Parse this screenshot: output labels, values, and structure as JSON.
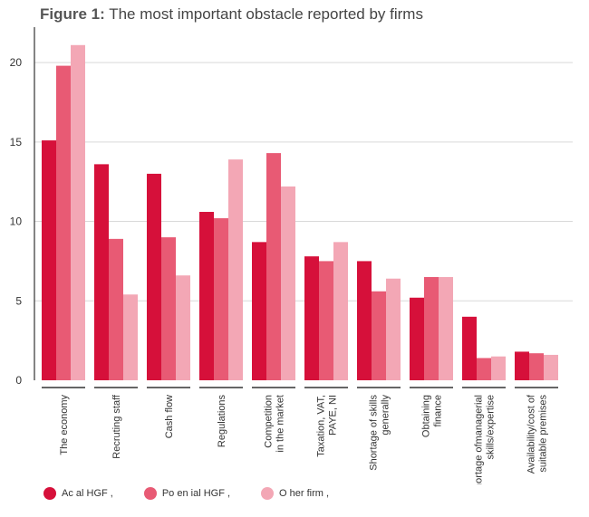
{
  "title": {
    "prefix": "Figure 1:",
    "text": "The most important obstacle reported by firms"
  },
  "colors": {
    "series1": "#d6103a",
    "series2": "#e85a74",
    "series3": "#f3a7b5",
    "grid": "#d9d9d9",
    "axis": "#333333"
  },
  "chart_data": {
    "type": "bar",
    "categories": [
      [
        "The economy"
      ],
      [
        "Recruting staff"
      ],
      [
        "Cash flow"
      ],
      [
        "Regulations"
      ],
      [
        "Competition",
        "in the market"
      ],
      [
        "Taxation, VAT,",
        "PAYE, NI"
      ],
      [
        "Shortage of skills",
        "generally"
      ],
      [
        "Obtaining",
        "finance"
      ],
      [
        "Shortage ofmanagerial",
        "skills/expertise"
      ],
      [
        "Availability/cost of",
        "suitable premises"
      ]
    ],
    "series": [
      {
        "name": "Ac al HGF ,",
        "values": [
          15.1,
          13.6,
          13.0,
          10.6,
          8.7,
          7.8,
          7.5,
          5.2,
          4.0,
          1.8
        ]
      },
      {
        "name": "Po en ial HGF ,",
        "values": [
          19.8,
          8.9,
          9.0,
          10.2,
          14.3,
          7.5,
          5.6,
          6.5,
          1.4,
          1.7
        ]
      },
      {
        "name": "O her firm ,",
        "values": [
          21.1,
          5.4,
          6.6,
          13.9,
          12.2,
          8.7,
          6.4,
          6.5,
          1.5,
          1.6
        ]
      }
    ],
    "ylim": [
      0,
      22
    ],
    "yticks": [
      0,
      5,
      10,
      15,
      20
    ],
    "grid": true,
    "legend_position": "bottom-left"
  }
}
